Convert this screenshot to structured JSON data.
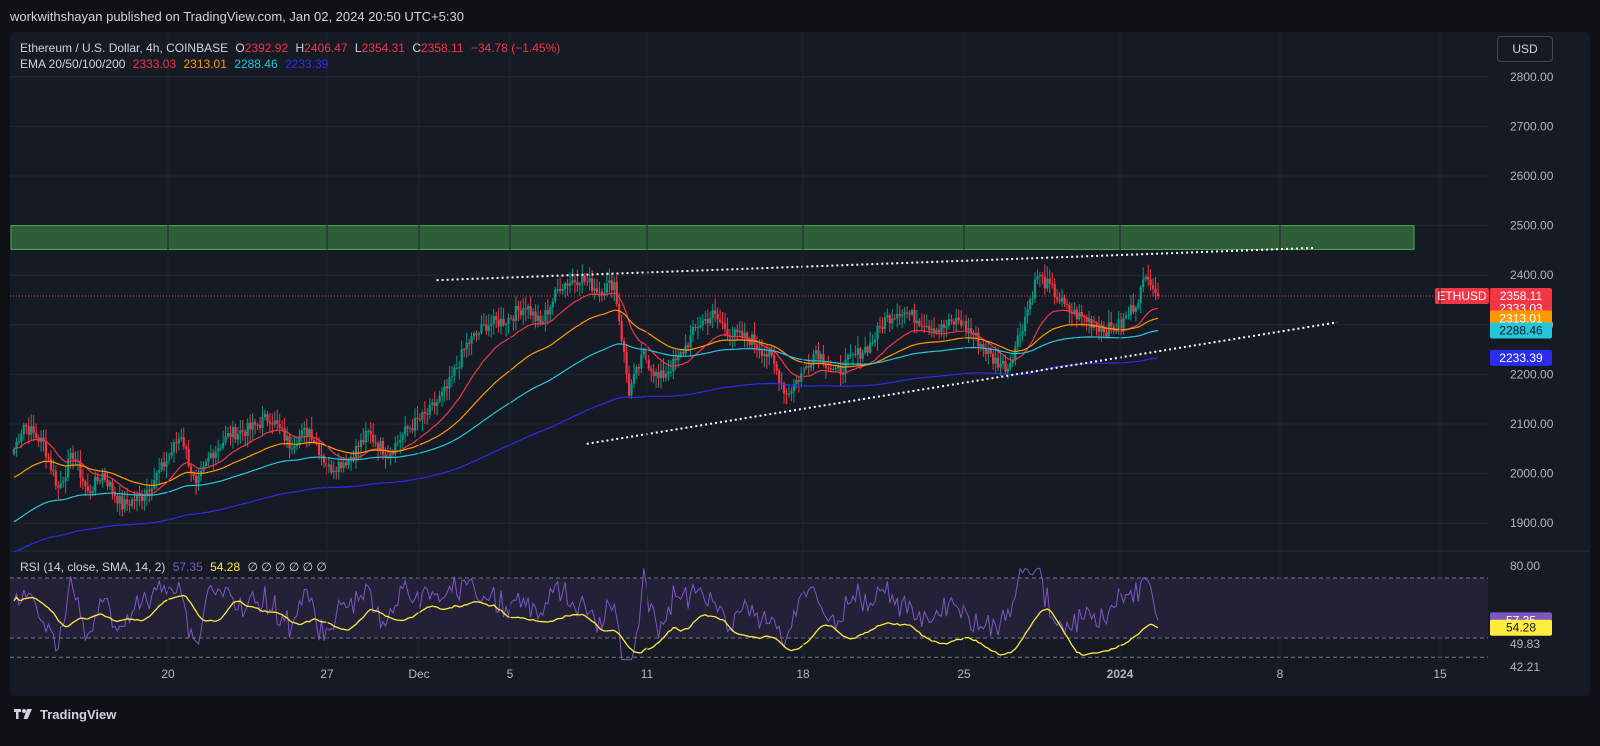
{
  "header": {
    "published_text": "workwithshayan published on TradingView.com, Jan 02, 2024 20:50 UTC+5:30"
  },
  "legend": {
    "symbol": "Ethereum / U.S. Dollar, 4h, COINBASE",
    "open_label": "O",
    "open": "2392.92",
    "high_label": "H",
    "high": "2406.47",
    "low_label": "L",
    "low": "2354.31",
    "close_label": "C",
    "close": "2358.11",
    "change": "−34.78 (−1.45%)",
    "ema_label": "EMA 20/50/100/200",
    "ema_values": [
      "2333.03",
      "2313.01",
      "2288.46",
      "2233.39"
    ]
  },
  "currency_button": "USD",
  "rsi_legend": {
    "label": "RSI (14, close, SMA, 14, 2)",
    "rsi": "57.35",
    "sma": "54.28",
    "extras": "∅ ∅ ∅ ∅ ∅ ∅"
  },
  "footer": {
    "brand": "TradingView"
  },
  "colors": {
    "bull": "#089981",
    "bear": "#f23645",
    "ema20": "#f23645",
    "ema50": "#ff9800",
    "ema100": "#26c6da",
    "ema200": "#2a2eec",
    "rsi": "#7e57c2",
    "rsi_sma": "#ffeb3b",
    "zone": "#4caf50"
  },
  "chart_data": [
    {
      "type": "candlestick",
      "symbol": "ETHUSD",
      "interval": "4h",
      "x_ticks": [
        "20",
        "27",
        "Dec",
        "5",
        "11",
        "18",
        "25",
        "2024",
        "8",
        "15"
      ],
      "y_ticks": [
        1900,
        2000,
        2100,
        2200,
        2300,
        2400,
        2500,
        2600,
        2700,
        2800
      ],
      "y_tick_labels": [
        "1900.00",
        "2000.00",
        "2100.00",
        "2200.00",
        "2300.00",
        "2400.00",
        "2500.00",
        "2600.00",
        "2700.00",
        "2800.00"
      ],
      "ylim": [
        1850,
        2850
      ],
      "price_anchor_points": [
        [
          0,
          2050
        ],
        [
          4,
          2100
        ],
        [
          12,
          2060
        ],
        [
          18,
          1970
        ],
        [
          24,
          2040
        ],
        [
          30,
          1960
        ],
        [
          36,
          2000
        ],
        [
          44,
          1935
        ],
        [
          52,
          1955
        ],
        [
          60,
          2010
        ],
        [
          68,
          2080
        ],
        [
          74,
          1970
        ],
        [
          80,
          2040
        ],
        [
          88,
          2080
        ],
        [
          96,
          2090
        ],
        [
          104,
          2115
        ],
        [
          112,
          2060
        ],
        [
          120,
          2090
        ],
        [
          128,
          2010
        ],
        [
          136,
          2030
        ],
        [
          144,
          2080
        ],
        [
          152,
          2040
        ],
        [
          160,
          2090
        ],
        [
          168,
          2120
        ],
        [
          176,
          2170
        ],
        [
          184,
          2260
        ],
        [
          192,
          2300
        ],
        [
          200,
          2310
        ],
        [
          208,
          2340
        ],
        [
          214,
          2300
        ],
        [
          222,
          2380
        ],
        [
          230,
          2395
        ],
        [
          238,
          2370
        ],
        [
          244,
          2385
        ],
        [
          250,
          2165
        ],
        [
          256,
          2240
        ],
        [
          262,
          2190
        ],
        [
          270,
          2230
        ],
        [
          278,
          2300
        ],
        [
          284,
          2320
        ],
        [
          292,
          2280
        ],
        [
          300,
          2270
        ],
        [
          308,
          2230
        ],
        [
          314,
          2160
        ],
        [
          320,
          2200
        ],
        [
          326,
          2250
        ],
        [
          334,
          2200
        ],
        [
          340,
          2230
        ],
        [
          348,
          2260
        ],
        [
          354,
          2310
        ],
        [
          360,
          2330
        ],
        [
          368,
          2310
        ],
        [
          376,
          2290
        ],
        [
          384,
          2310
        ],
        [
          390,
          2280
        ],
        [
          398,
          2230
        ],
        [
          404,
          2215
        ],
        [
          410,
          2300
        ],
        [
          416,
          2400
        ],
        [
          422,
          2370
        ],
        [
          428,
          2330
        ],
        [
          436,
          2310
        ],
        [
          444,
          2290
        ],
        [
          450,
          2300
        ],
        [
          456,
          2345
        ],
        [
          461,
          2405
        ],
        [
          465,
          2358
        ]
      ],
      "last_price": 2358.11,
      "last_price_label": "ETHUSD",
      "ema_last": {
        "ema20": 2333.03,
        "ema50": 2313.01,
        "ema100": 2288.46,
        "ema200": 2233.39
      },
      "resistance_zone": [
        2452,
        2500
      ],
      "resistance_trendline": [
        [
          0.27,
          2390
        ],
        [
          0.825,
          2455
        ]
      ],
      "support_trendline": [
        [
          0.365,
          2060
        ],
        [
          0.84,
          2305
        ]
      ]
    },
    {
      "type": "line",
      "name": "RSI (14, close, SMA, 14, 2)",
      "ylim": [
        40,
        85
      ],
      "y_ticks": [
        80
      ],
      "levels": [
        70,
        50
      ],
      "last_rsi": 57.35,
      "last_sma": 54.28,
      "axis_labels": [
        "80.00",
        "57.35",
        "54.28",
        "49.83",
        "42.21"
      ]
    }
  ]
}
